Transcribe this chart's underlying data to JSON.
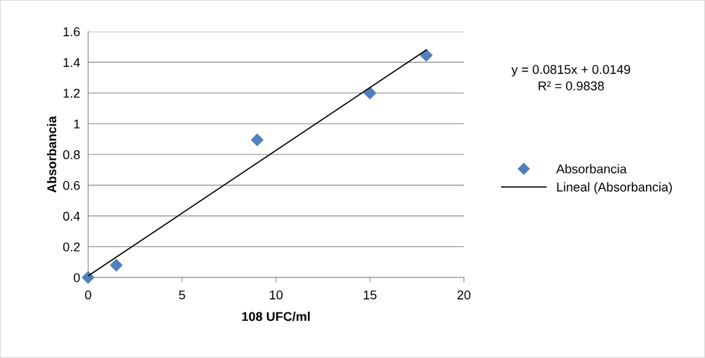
{
  "chart_data": {
    "type": "scatter",
    "xlabel": "108 UFC/ml",
    "ylabel": "Absorbancia",
    "xlim": [
      0,
      20
    ],
    "xticks": [
      0,
      5,
      10,
      15,
      20
    ],
    "ylim": [
      0,
      1.6
    ],
    "yticks": [
      0,
      0.2,
      0.4,
      0.6,
      0.8,
      1,
      1.2,
      1.4,
      1.6
    ],
    "grid": "y",
    "legend": "right",
    "series": [
      {
        "name": "Absorbancia",
        "marker": "diamond",
        "color": "#4f81bd",
        "x": [
          0,
          1.5,
          9,
          15,
          18
        ],
        "values": [
          0,
          0.08,
          0.895,
          1.2,
          1.445
        ]
      },
      {
        "name": "Lineal (Absorbancia)",
        "type": "line",
        "marker": "none",
        "line_style": "solid",
        "color": "#000000",
        "x": [
          0,
          18
        ],
        "values": [
          0.01,
          1.48
        ]
      }
    ],
    "annotations": [
      "y = 0.0815x + 0.0149\nR² = 0.9838"
    ]
  }
}
